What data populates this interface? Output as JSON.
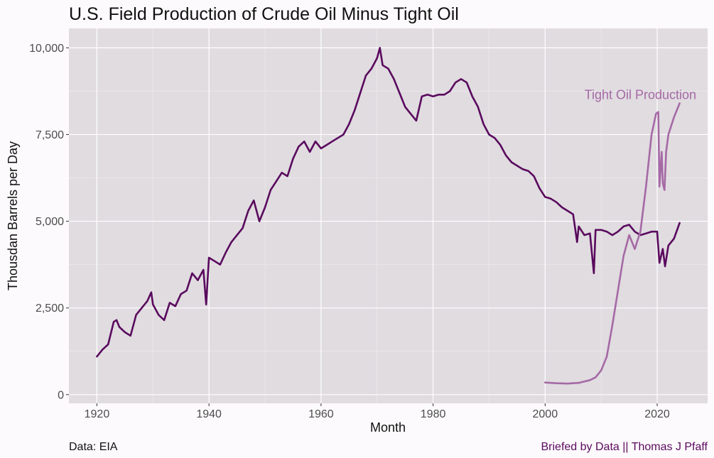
{
  "chart_data": {
    "type": "line",
    "title": "U.S. Field Production of Crude Oil Minus Tight Oil",
    "xlabel": "Month",
    "ylabel": "Thousdan Barrels per Day",
    "xlim": [
      1915,
      2029
    ],
    "ylim": [
      -250,
      10560
    ],
    "x_ticks": [
      1920,
      1940,
      1960,
      1980,
      2000,
      2020
    ],
    "y_ticks": [
      0,
      2500,
      5000,
      7500,
      10000
    ],
    "y_tick_labels": [
      "0",
      "2,500",
      "5,000",
      "7,500",
      "10,000"
    ],
    "grid": true,
    "legend": "none",
    "annotations": [
      {
        "text": "Tight Oil Production",
        "x": 2017,
        "y": 8650,
        "color": "#a569a5"
      }
    ],
    "series": [
      {
        "name": "",
        "color": "#5a0a5e",
        "x": [
          1920,
          1921,
          1922,
          1923,
          1923.5,
          1924,
          1925,
          1926,
          1927,
          1928,
          1929,
          1929.7,
          1930,
          1931,
          1932,
          1933,
          1934,
          1935,
          1936,
          1937,
          1938,
          1939,
          1939.5,
          1940,
          1941,
          1942,
          1943,
          1944,
          1945,
          1946,
          1947,
          1948,
          1949,
          1950,
          1951,
          1952,
          1953,
          1954,
          1955,
          1956,
          1957,
          1958,
          1959,
          1960,
          1961,
          1962,
          1963,
          1964,
          1965,
          1966,
          1967,
          1968,
          1969,
          1970,
          1970.5,
          1971,
          1972,
          1973,
          1974,
          1975,
          1976,
          1977,
          1978,
          1979,
          1980,
          1981,
          1982,
          1983,
          1984,
          1985,
          1986,
          1987,
          1988,
          1989,
          1990,
          1991,
          1992,
          1993,
          1994,
          1995,
          1996,
          1997,
          1998,
          1999,
          2000,
          2001,
          2002,
          2003,
          2004,
          2005,
          2005.7,
          2006,
          2007,
          2008,
          2008.7,
          2009,
          2010,
          2011,
          2012,
          2013,
          2014,
          2015,
          2016,
          2017,
          2018,
          2019,
          2020,
          2020.4,
          2021,
          2021.4,
          2022,
          2023,
          2024
        ],
        "y": [
          1100,
          1300,
          1450,
          2100,
          2150,
          1950,
          1800,
          1700,
          2300,
          2500,
          2700,
          2950,
          2600,
          2300,
          2150,
          2650,
          2550,
          2900,
          3000,
          3500,
          3300,
          3600,
          2600,
          3950,
          3850,
          3750,
          4100,
          4400,
          4600,
          4800,
          5300,
          5600,
          5000,
          5400,
          5900,
          6150,
          6400,
          6300,
          6800,
          7150,
          7300,
          7000,
          7300,
          7100,
          7200,
          7300,
          7400,
          7500,
          7800,
          8200,
          8700,
          9200,
          9400,
          9700,
          10000,
          9500,
          9400,
          9100,
          8700,
          8300,
          8100,
          7900,
          8600,
          8650,
          8600,
          8650,
          8650,
          8750,
          9000,
          9100,
          9000,
          8600,
          8300,
          7800,
          7500,
          7400,
          7200,
          6900,
          6700,
          6600,
          6500,
          6450,
          6300,
          5950,
          5700,
          5650,
          5550,
          5400,
          5300,
          5200,
          4400,
          4850,
          4600,
          4650,
          3500,
          4750,
          4750,
          4700,
          4600,
          4700,
          4850,
          4900,
          4700,
          4600,
          4650,
          4700,
          4700,
          3800,
          4200,
          3700,
          4300,
          4500,
          4950
        ]
      },
      {
        "name": "Tight Oil Production",
        "color": "#a569a5",
        "x": [
          2000,
          2002,
          2004,
          2006,
          2007,
          2008,
          2009,
          2010,
          2011,
          2012,
          2013,
          2014,
          2015,
          2016,
          2017,
          2018,
          2019,
          2019.8,
          2020.2,
          2020.4,
          2020.8,
          2021,
          2021.3,
          2021.6,
          2022,
          2023,
          2024
        ],
        "y": [
          350,
          330,
          320,
          340,
          380,
          420,
          500,
          700,
          1100,
          2000,
          3000,
          4000,
          4600,
          4200,
          4700,
          6000,
          7500,
          8100,
          8150,
          6000,
          7000,
          6100,
          5900,
          7000,
          7500,
          8000,
          8400
        ]
      }
    ],
    "caption_left": "Data: EIA",
    "caption_right": "Briefed by Data || Thomas J Pfaff",
    "caption_right_color": "#5a0a5e"
  }
}
